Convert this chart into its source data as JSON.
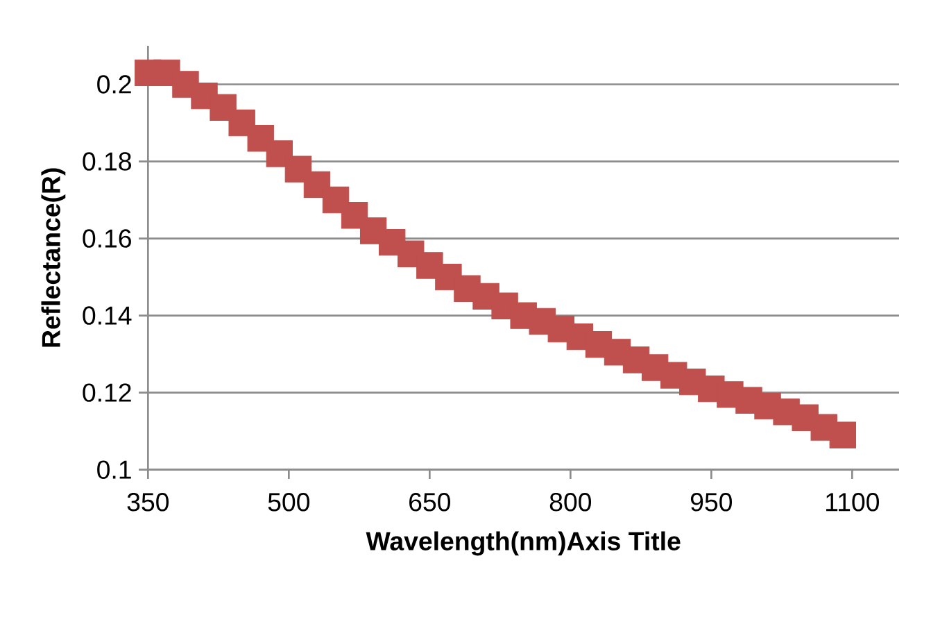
{
  "chart_data": {
    "type": "scatter",
    "xlabel": "Wavelength(nm)Axis Title",
    "ylabel": "Reflectance(R)",
    "x": [
      350,
      370,
      390,
      410,
      430,
      450,
      470,
      490,
      510,
      530,
      550,
      570,
      590,
      610,
      630,
      650,
      670,
      690,
      710,
      730,
      750,
      770,
      790,
      810,
      830,
      850,
      870,
      890,
      910,
      930,
      950,
      970,
      990,
      1010,
      1030,
      1050,
      1070,
      1090
    ],
    "series": [
      {
        "color": "#c0504d",
        "values": [
          0.203,
          0.203,
          0.2,
          0.197,
          0.194,
          0.19,
          0.186,
          0.182,
          0.178,
          0.174,
          0.17,
          0.166,
          0.162,
          0.159,
          0.156,
          0.153,
          0.15,
          0.147,
          0.145,
          0.1425,
          0.14,
          0.1385,
          0.1365,
          0.1345,
          0.1325,
          0.1305,
          0.1285,
          0.1265,
          0.1245,
          0.1228,
          0.121,
          0.1195,
          0.118,
          0.1165,
          0.115,
          0.1135,
          0.111,
          0.109
        ]
      }
    ],
    "xlim": [
      350,
      1150
    ],
    "ylim": [
      0.1,
      0.21
    ],
    "xticks": [
      350,
      500,
      650,
      800,
      950,
      1100
    ],
    "yticks": [
      0.1,
      0.12,
      0.14,
      0.16,
      0.18,
      0.2
    ],
    "grid": "y",
    "marker": "square"
  }
}
